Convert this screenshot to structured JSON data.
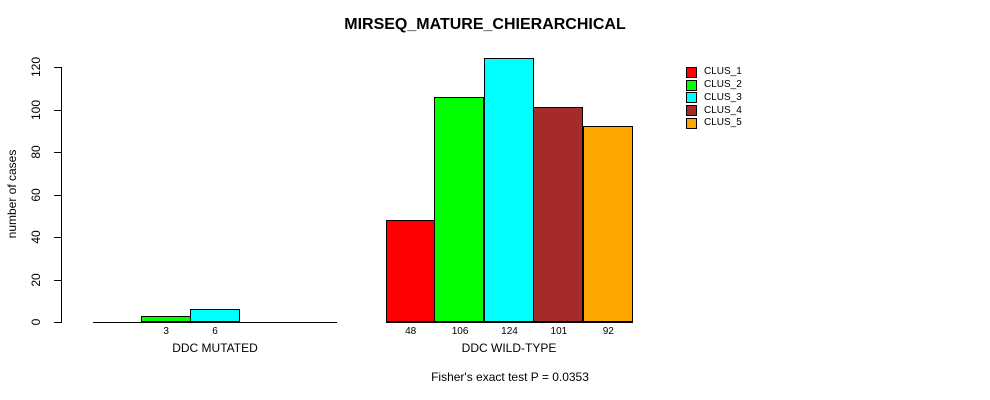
{
  "chart_data": {
    "type": "bar",
    "title": "MIRSEQ_MATURE_CHIERARCHICAL",
    "ylabel": "number of cases",
    "xlabel": "",
    "ylim": [
      0,
      120
    ],
    "yticks": [
      0,
      20,
      40,
      60,
      80,
      100,
      120
    ],
    "grid": false,
    "legend_position": "top-right",
    "series": [
      {
        "name": "CLUS_1",
        "color": "#FF0000"
      },
      {
        "name": "CLUS_2",
        "color": "#00FF00"
      },
      {
        "name": "CLUS_3",
        "color": "#00FFFF"
      },
      {
        "name": "CLUS_4",
        "color": "#A52A2A"
      },
      {
        "name": "CLUS_5",
        "color": "#FFA500"
      }
    ],
    "groups": [
      {
        "label": "DDC MUTATED",
        "values": [
          0,
          3,
          6,
          0,
          0
        ]
      },
      {
        "label": "DDC WILD-TYPE",
        "values": [
          48,
          106,
          124,
          101,
          92
        ]
      }
    ],
    "annotation": "Fisher's exact test P = 0.0353"
  }
}
